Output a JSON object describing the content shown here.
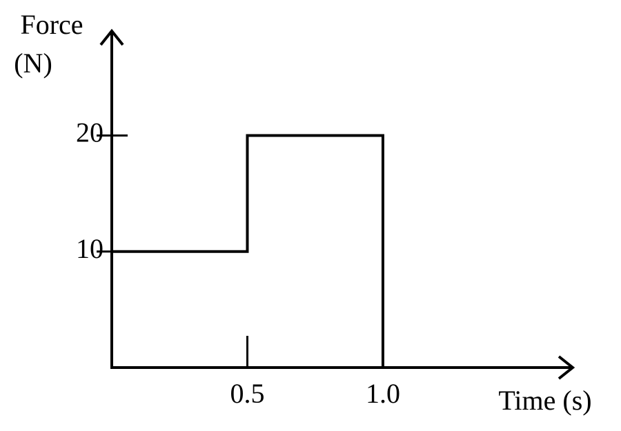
{
  "chart_data": {
    "type": "step",
    "ylabel": [
      "Force",
      "(N)"
    ],
    "xlabel": "Time (s)",
    "x": [
      0,
      0.5,
      1.0
    ],
    "values": [
      10,
      20,
      0
    ],
    "color": "#000000",
    "xlim": [
      0,
      1.7
    ],
    "ylim": [
      0,
      29
    ],
    "xticks": [
      0.5,
      {
        "value": 1.0,
        "label": "1.0"
      }
    ],
    "yticks": [
      10,
      20
    ]
  }
}
